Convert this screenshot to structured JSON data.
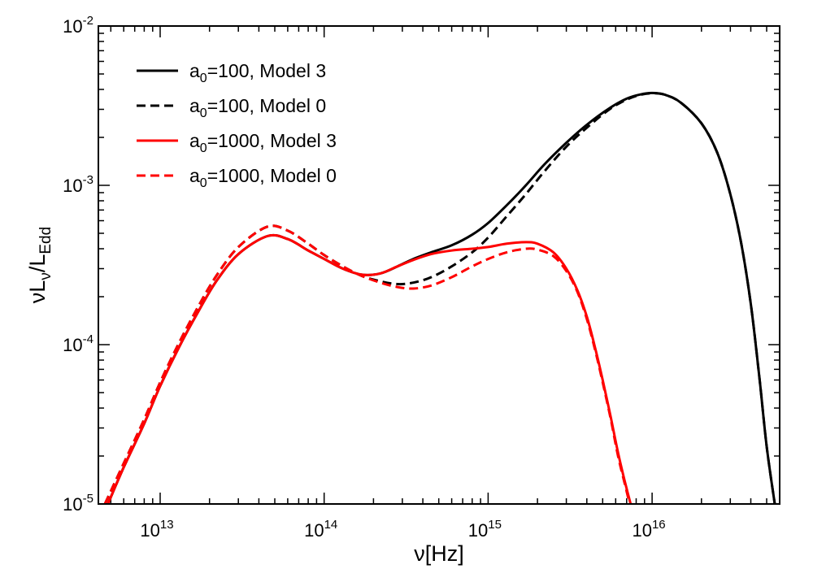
{
  "chart_data": {
    "type": "line",
    "title": "",
    "xscale": "log",
    "yscale": "log",
    "xlim": [
      4200000000000.0,
      6e+16
    ],
    "ylim": [
      1e-05,
      0.01
    ],
    "x_ticks": [
      {
        "base": "10",
        "exp": "13",
        "value": 10000000000000.0
      },
      {
        "base": "10",
        "exp": "14",
        "value": 100000000000000.0
      },
      {
        "base": "10",
        "exp": "15",
        "value": 1000000000000000.0
      },
      {
        "base": "10",
        "exp": "16",
        "value": 1e+16
      }
    ],
    "y_ticks": [
      {
        "base": "10",
        "exp": "-5",
        "value": 1e-05
      },
      {
        "base": "10",
        "exp": "-4",
        "value": 0.0001
      },
      {
        "base": "10",
        "exp": "-3",
        "value": 0.001
      },
      {
        "base": "10",
        "exp": "-2",
        "value": 0.01
      }
    ],
    "xlabel": {
      "text": "ν[Hz]"
    },
    "ylabel": {
      "main": "νL",
      "sub1": "ν",
      "mid": "/L",
      "sub2": "Edd"
    },
    "legend": {
      "position": "top-left"
    },
    "series": [
      {
        "name": "a0=100, Model 3",
        "label_pre": "a",
        "label_sub": "0",
        "label_post": "=100, Model 3",
        "color": "#000000",
        "dash": "solid",
        "x": [
          4800000000000.0,
          6000000000000.0,
          8000000000000.0,
          10000000000000.0,
          13000000000000.0,
          17000000000000.0,
          22000000000000.0,
          30000000000000.0,
          45000000000000.0,
          60000000000000.0,
          80000000000000.0,
          100000000000000.0,
          130000000000000.0,
          170000000000000.0,
          220000000000000.0,
          280000000000000.0,
          350000000000000.0,
          450000000000000.0,
          600000000000000.0,
          800000000000000.0,
          1000000000000000.0,
          1300000000000000.0,
          1700000000000000.0,
          2200000000000000.0,
          3000000000000000.0,
          4000000000000000.0,
          5500000000000000.0,
          7000000000000000.0,
          8500000000000000.0,
          1e+16,
          1.2e+16,
          1.5e+16,
          2e+16,
          2.5e+16,
          3e+16,
          3.5e+16,
          4e+16,
          4.5e+16,
          5e+16,
          5.6e+16
        ],
        "y": [
          1e-05,
          1.7e-05,
          3.2e-05,
          5.5e-05,
          9.6e-05,
          0.00016,
          0.00025,
          0.00037,
          0.00048,
          0.00046,
          0.00039,
          0.000345,
          0.0003,
          0.000275,
          0.00028,
          0.00031,
          0.000345,
          0.00038,
          0.00042,
          0.00049,
          0.00058,
          0.00075,
          0.001,
          0.00135,
          0.00185,
          0.0024,
          0.00305,
          0.0035,
          0.00372,
          0.0038,
          0.0037,
          0.0033,
          0.00245,
          0.0016,
          0.00088,
          0.00043,
          0.00018,
          6.4e-05,
          2.3e-05,
          1e-05
        ]
      },
      {
        "name": "a0=100, Model 0",
        "label_pre": "a",
        "label_sub": "0",
        "label_post": "=100, Model 0",
        "color": "#000000",
        "dash": "dashed",
        "x": [
          4600000000000.0,
          6000000000000.0,
          8000000000000.0,
          10000000000000.0,
          13000000000000.0,
          17000000000000.0,
          22000000000000.0,
          30000000000000.0,
          45000000000000.0,
          60000000000000.0,
          80000000000000.0,
          100000000000000.0,
          130000000000000.0,
          170000000000000.0,
          220000000000000.0,
          280000000000000.0,
          350000000000000.0,
          450000000000000.0,
          600000000000000.0,
          800000000000000.0,
          1000000000000000.0,
          1300000000000000.0,
          1700000000000000.0,
          2200000000000000.0,
          3000000000000000.0,
          4000000000000000.0,
          5500000000000000.0,
          7000000000000000.0,
          8500000000000000.0,
          1e+16,
          1.2e+16,
          1.5e+16,
          2e+16,
          2.5e+16,
          3e+16,
          3.5e+16,
          4e+16,
          4.5e+16,
          5e+16,
          5.6e+16
        ],
        "y": [
          1e-05,
          1.8e-05,
          3.4e-05,
          5.8e-05,
          0.000102,
          0.000172,
          0.00027,
          0.00041,
          0.00055,
          0.00052,
          0.00043,
          0.000365,
          0.00031,
          0.00027,
          0.00025,
          0.00024,
          0.000245,
          0.000265,
          0.00031,
          0.00038,
          0.00047,
          0.00064,
          0.00088,
          0.00122,
          0.00175,
          0.0023,
          0.003,
          0.00345,
          0.0037,
          0.00378,
          0.0037,
          0.0033,
          0.00245,
          0.0016,
          0.00088,
          0.00043,
          0.00018,
          6.4e-05,
          2.3e-05,
          1e-05
        ]
      },
      {
        "name": "a0=1000, Model 3",
        "label_pre": "a",
        "label_sub": "0",
        "label_post": "=1000, Model 3",
        "color": "#ff0000",
        "dash": "solid",
        "x": [
          4800000000000.0,
          6000000000000.0,
          8000000000000.0,
          10000000000000.0,
          13000000000000.0,
          17000000000000.0,
          22000000000000.0,
          30000000000000.0,
          45000000000000.0,
          60000000000000.0,
          80000000000000.0,
          100000000000000.0,
          130000000000000.0,
          170000000000000.0,
          220000000000000.0,
          280000000000000.0,
          350000000000000.0,
          450000000000000.0,
          600000000000000.0,
          800000000000000.0,
          1000000000000000.0,
          1300000000000000.0,
          1700000000000000.0,
          2000000000000000.0,
          2500000000000000.0,
          3000000000000000.0,
          3500000000000000.0,
          4000000000000000.0,
          4500000000000000.0,
          5000000000000000.0,
          5600000000000000.0,
          6200000000000000.0,
          6800000000000000.0,
          7400000000000000.0
        ],
        "y": [
          1e-05,
          1.7e-05,
          3.2e-05,
          5.5e-05,
          9.6e-05,
          0.00016,
          0.00025,
          0.00037,
          0.00048,
          0.00046,
          0.00039,
          0.000345,
          0.0003,
          0.000275,
          0.00028,
          0.00031,
          0.00034,
          0.00037,
          0.00039,
          0.0004,
          0.00041,
          0.00043,
          0.00044,
          0.00043,
          0.00038,
          0.0003,
          0.00022,
          0.00015,
          9.5e-05,
          6e-05,
          3.5e-05,
          2.1e-05,
          1.4e-05,
          1e-05
        ]
      },
      {
        "name": "a0=1000, Model 0",
        "label_pre": "a",
        "label_sub": "0",
        "label_post": "=1000, Model 0",
        "color": "#ff0000",
        "dash": "dashed",
        "x": [
          4600000000000.0,
          6000000000000.0,
          8000000000000.0,
          10000000000000.0,
          13000000000000.0,
          17000000000000.0,
          22000000000000.0,
          30000000000000.0,
          45000000000000.0,
          60000000000000.0,
          80000000000000.0,
          100000000000000.0,
          130000000000000.0,
          170000000000000.0,
          220000000000000.0,
          280000000000000.0,
          350000000000000.0,
          450000000000000.0,
          600000000000000.0,
          800000000000000.0,
          1000000000000000.0,
          1300000000000000.0,
          1700000000000000.0,
          2000000000000000.0,
          2500000000000000.0,
          3000000000000000.0,
          3500000000000000.0,
          4000000000000000.0,
          4500000000000000.0,
          5000000000000000.0,
          5600000000000000.0,
          6200000000000000.0,
          6800000000000000.0,
          7300000000000000.0
        ],
        "y": [
          1e-05,
          1.8e-05,
          3.4e-05,
          5.8e-05,
          0.000102,
          0.000172,
          0.00027,
          0.00041,
          0.00055,
          0.00052,
          0.00043,
          0.000365,
          0.00031,
          0.00027,
          0.000245,
          0.00023,
          0.000225,
          0.000235,
          0.000265,
          0.00031,
          0.000345,
          0.00038,
          0.0004,
          0.000395,
          0.00036,
          0.00029,
          0.000215,
          0.000145,
          9.2e-05,
          5.8e-05,
          3.4e-05,
          2e-05,
          1.35e-05,
          1e-05
        ]
      }
    ]
  }
}
